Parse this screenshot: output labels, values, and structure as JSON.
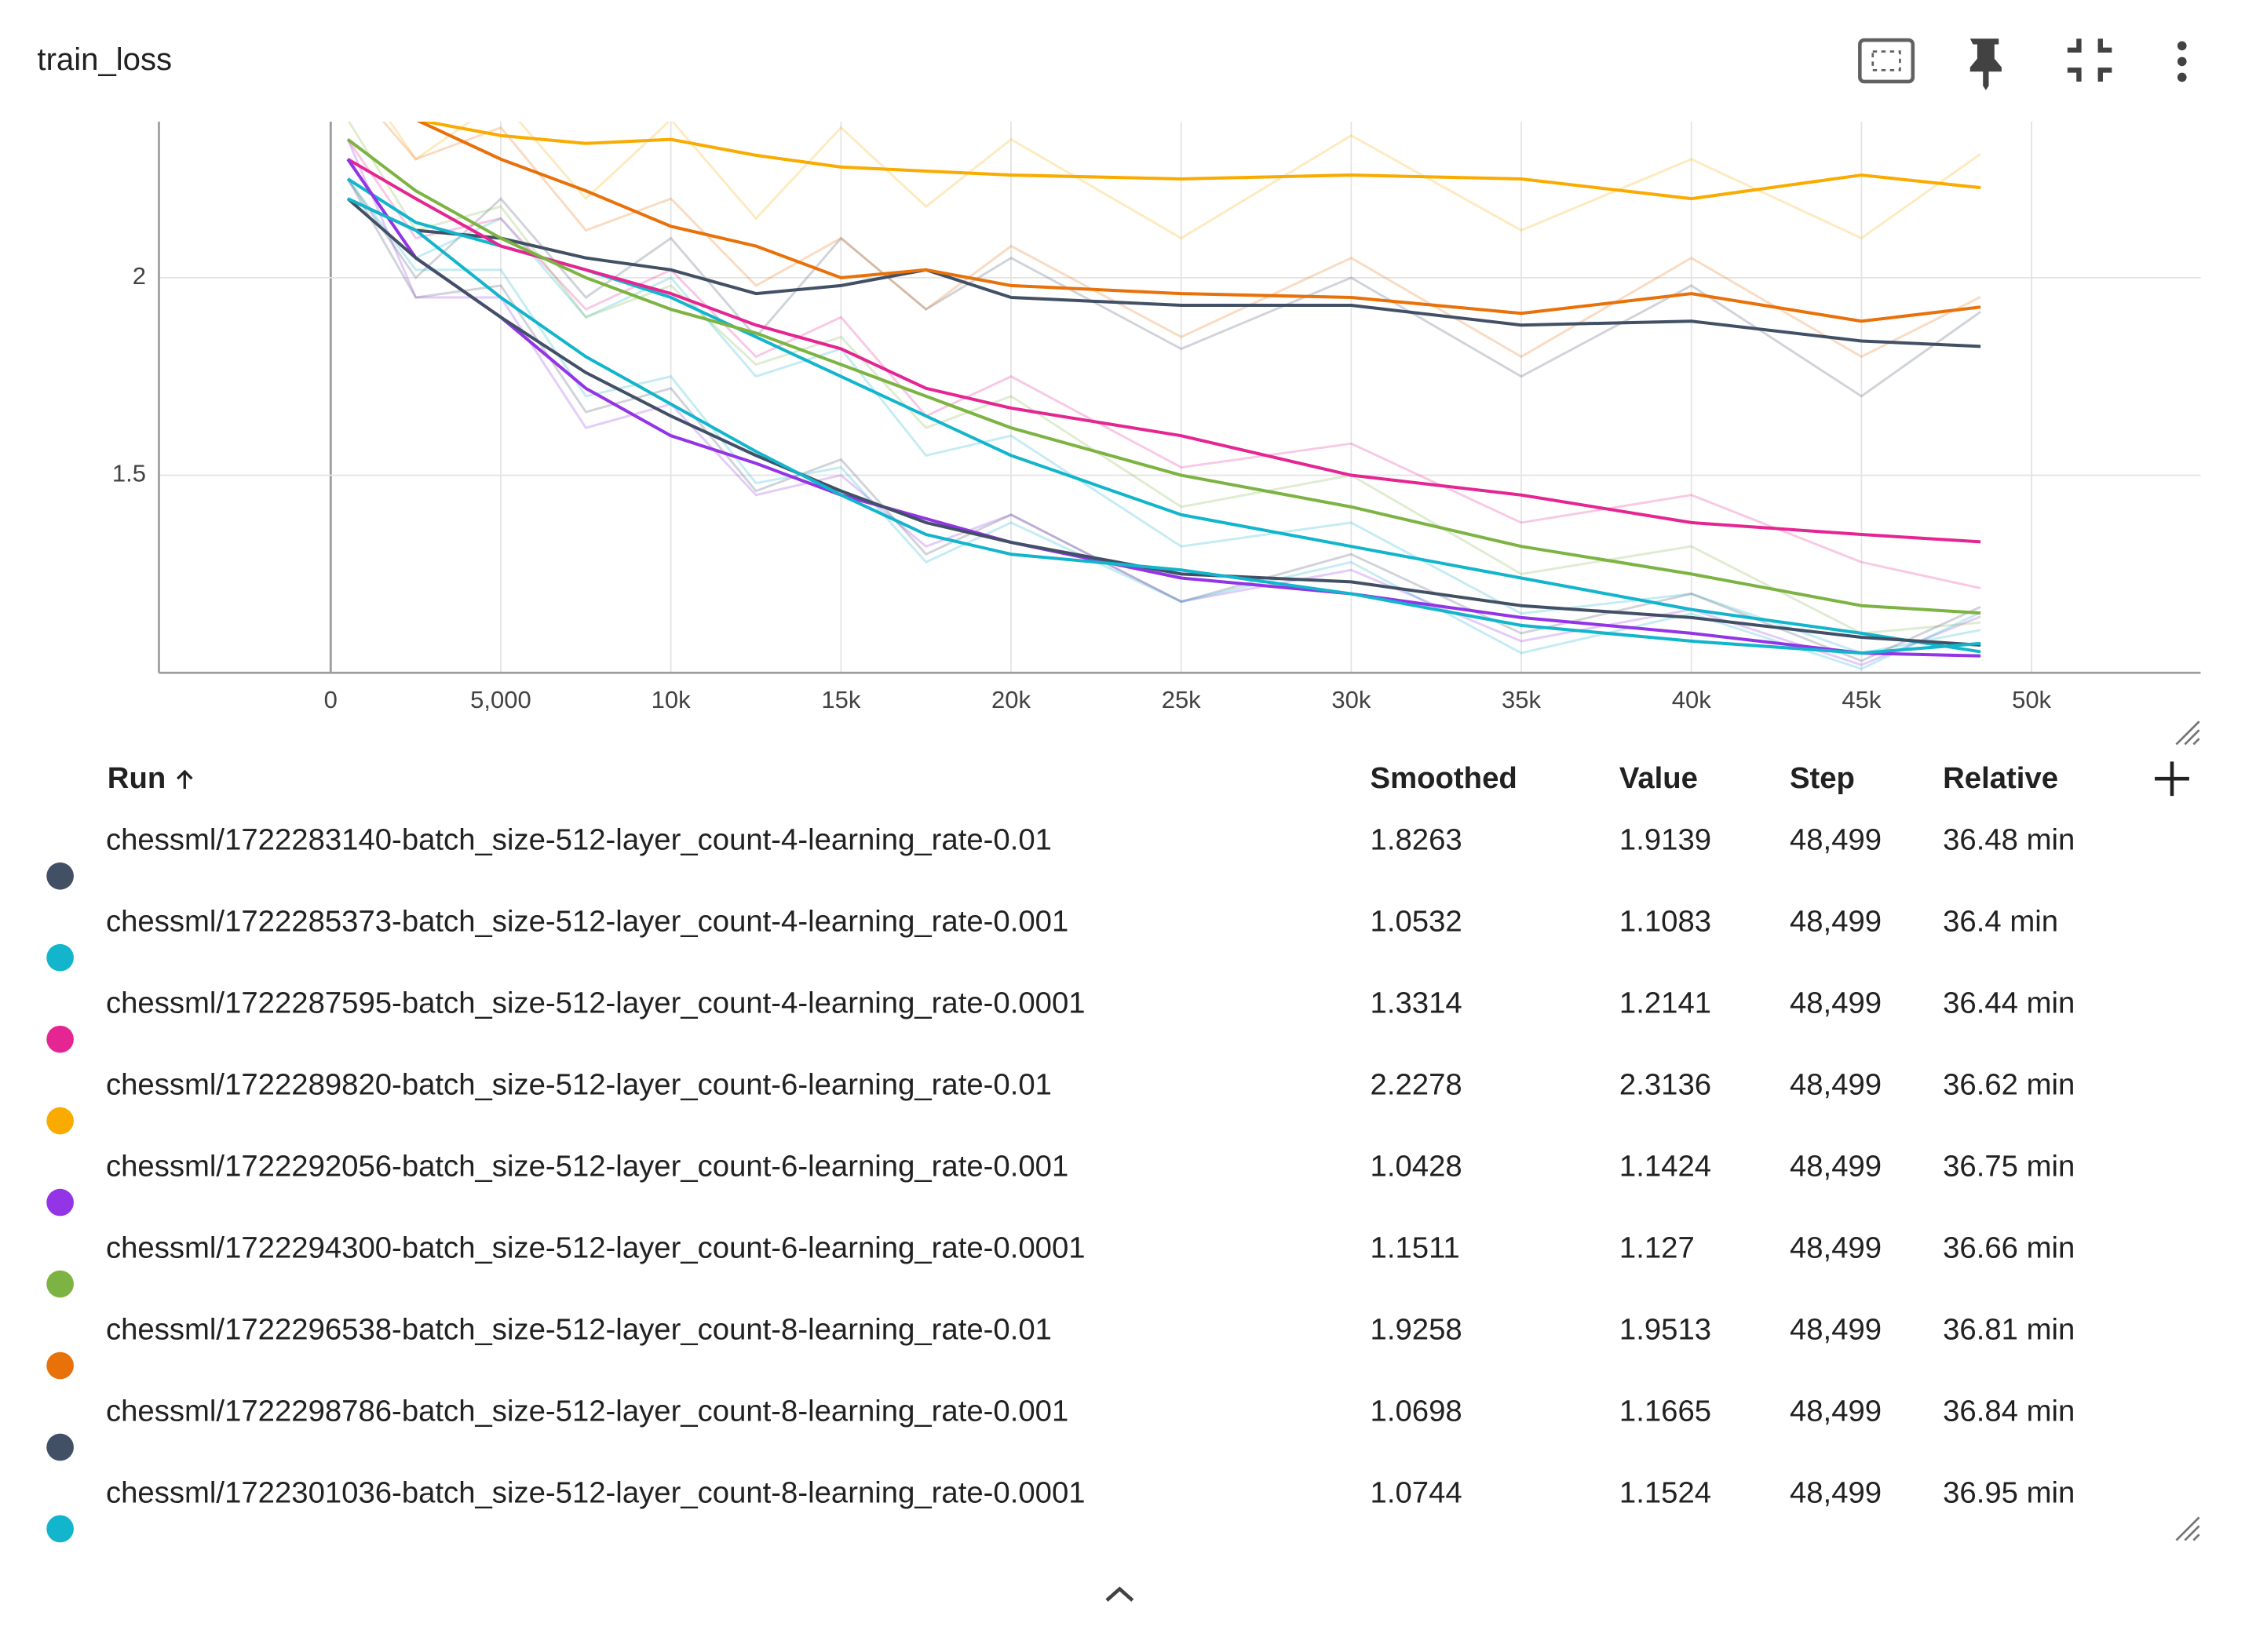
{
  "title": "train_loss",
  "chart_data": {
    "type": "line",
    "grid": true,
    "smoothed_width": 2.2,
    "raw_opacity": 0.25,
    "xlim": [
      -5050,
      54970
    ],
    "ylim": [
      1.0,
      2.395
    ],
    "xticks": [
      0,
      {
        "value": 5000,
        "label": "5,000"
      },
      {
        "value": 10000,
        "label": "10k"
      },
      {
        "value": 15000,
        "label": "15k"
      },
      {
        "value": 20000,
        "label": "20k"
      },
      {
        "value": 25000,
        "label": "25k"
      },
      {
        "value": 30000,
        "label": "30k"
      },
      {
        "value": 35000,
        "label": "35k"
      },
      {
        "value": 40000,
        "label": "40k"
      },
      {
        "value": 45000,
        "label": "45k"
      },
      {
        "value": 50000,
        "label": "50k"
      }
    ],
    "yticks": [
      1.5,
      2
    ],
    "x": [
      500,
      2500,
      5000,
      7500,
      10000,
      12500,
      15000,
      17500,
      20000,
      25000,
      30000,
      35000,
      40000,
      45000,
      48499
    ],
    "series": [
      {
        "name": "chessml/1722283140-batch_size-512-layer_count-4-learning_rate-0.01",
        "color": "#425066",
        "values": [
          2.2,
          2.12,
          2.1,
          2.05,
          2.02,
          1.96,
          1.98,
          2.02,
          1.95,
          1.93,
          1.93,
          1.88,
          1.89,
          1.84,
          1.8263
        ],
        "raw_values": [
          2.25,
          2.0,
          2.2,
          1.95,
          2.1,
          1.85,
          2.1,
          1.92,
          2.05,
          1.82,
          2.0,
          1.75,
          1.98,
          1.7,
          1.9139
        ]
      },
      {
        "name": "chessml/1722285373-batch_size-512-layer_count-4-learning_rate-0.001",
        "color": "#12b5cb",
        "values": [
          2.25,
          2.14,
          2.08,
          2.02,
          1.95,
          1.85,
          1.75,
          1.65,
          1.55,
          1.4,
          1.32,
          1.24,
          1.16,
          1.1,
          1.0532
        ],
        "raw_values": [
          2.3,
          2.05,
          2.15,
          1.9,
          2.0,
          1.75,
          1.82,
          1.55,
          1.6,
          1.32,
          1.38,
          1.15,
          1.2,
          1.05,
          1.1083
        ]
      },
      {
        "name": "chessml/1722287595-batch_size-512-layer_count-4-learning_rate-0.0001",
        "color": "#e52592",
        "values": [
          2.3,
          2.2,
          2.08,
          2.02,
          1.96,
          1.88,
          1.82,
          1.72,
          1.67,
          1.6,
          1.5,
          1.45,
          1.38,
          1.35,
          1.3314
        ],
        "raw_values": [
          2.35,
          2.1,
          2.15,
          1.92,
          2.02,
          1.8,
          1.9,
          1.65,
          1.75,
          1.52,
          1.58,
          1.38,
          1.45,
          1.28,
          1.2141
        ]
      },
      {
        "name": "chessml/1722289820-batch_size-512-layer_count-6-learning_rate-0.01",
        "color": "#f9ab00",
        "values": [
          2.5,
          2.4,
          2.36,
          2.34,
          2.35,
          2.31,
          2.28,
          2.27,
          2.26,
          2.25,
          2.26,
          2.25,
          2.2,
          2.26,
          2.2278
        ],
        "raw_values": [
          2.55,
          2.3,
          2.45,
          2.2,
          2.4,
          2.15,
          2.38,
          2.18,
          2.35,
          2.1,
          2.36,
          2.12,
          2.3,
          2.1,
          2.3136
        ]
      },
      {
        "name": "chessml/1722292056-batch_size-512-layer_count-6-learning_rate-0.001",
        "color": "#9334e6",
        "values": [
          2.3,
          2.05,
          1.9,
          1.72,
          1.6,
          1.53,
          1.45,
          1.39,
          1.33,
          1.24,
          1.2,
          1.14,
          1.1,
          1.05,
          1.0428
        ],
        "raw_values": [
          2.35,
          1.95,
          1.95,
          1.62,
          1.68,
          1.45,
          1.5,
          1.32,
          1.4,
          1.18,
          1.26,
          1.08,
          1.16,
          1.02,
          1.1424
        ]
      },
      {
        "name": "chessml/1722294300-batch_size-512-layer_count-6-learning_rate-0.0001",
        "color": "#7cb342",
        "values": [
          2.35,
          2.22,
          2.1,
          2.0,
          1.92,
          1.86,
          1.78,
          1.7,
          1.62,
          1.5,
          1.42,
          1.32,
          1.25,
          1.17,
          1.1511
        ],
        "raw_values": [
          2.4,
          2.12,
          2.18,
          1.9,
          1.98,
          1.78,
          1.85,
          1.62,
          1.7,
          1.42,
          1.5,
          1.25,
          1.32,
          1.1,
          1.127
        ]
      },
      {
        "name": "chessml/1722296538-batch_size-512-layer_count-8-learning_rate-0.01",
        "color": "#e8710a",
        "values": [
          2.45,
          2.4,
          2.3,
          2.22,
          2.13,
          2.08,
          2.0,
          2.02,
          1.98,
          1.96,
          1.95,
          1.91,
          1.96,
          1.89,
          1.9258
        ],
        "raw_values": [
          2.5,
          2.3,
          2.38,
          2.12,
          2.2,
          1.98,
          2.1,
          1.92,
          2.08,
          1.85,
          2.05,
          1.8,
          2.05,
          1.8,
          1.9513
        ]
      },
      {
        "name": "chessml/1722298786-batch_size-512-layer_count-8-learning_rate-0.001",
        "color": "#425066",
        "values": [
          2.2,
          2.05,
          1.9,
          1.76,
          1.65,
          1.55,
          1.46,
          1.38,
          1.33,
          1.25,
          1.23,
          1.17,
          1.14,
          1.09,
          1.0698
        ],
        "raw_values": [
          2.25,
          1.95,
          1.98,
          1.66,
          1.72,
          1.46,
          1.54,
          1.3,
          1.4,
          1.18,
          1.3,
          1.1,
          1.2,
          1.03,
          1.1665
        ]
      },
      {
        "name": "chessml/1722301036-batch_size-512-layer_count-8-learning_rate-0.0001",
        "color": "#12b5cb",
        "values": [
          2.2,
          2.12,
          1.95,
          1.8,
          1.68,
          1.56,
          1.45,
          1.35,
          1.3,
          1.26,
          1.2,
          1.12,
          1.08,
          1.05,
          1.0744
        ],
        "raw_values": [
          2.25,
          2.02,
          2.02,
          1.7,
          1.75,
          1.48,
          1.52,
          1.28,
          1.38,
          1.18,
          1.28,
          1.05,
          1.15,
          1.01,
          1.1524
        ]
      }
    ]
  },
  "table": {
    "columns": [
      "Run",
      "Smoothed",
      "Value",
      "Step",
      "Relative"
    ],
    "rows": [
      {
        "step": "48,499",
        "relative": "36.48 min"
      },
      {
        "step": "48,499",
        "relative": "36.4 min"
      },
      {
        "step": "48,499",
        "relative": "36.44 min"
      },
      {
        "step": "48,499",
        "relative": "36.62 min"
      },
      {
        "step": "48,499",
        "relative": "36.75 min"
      },
      {
        "step": "48,499",
        "relative": "36.66 min"
      },
      {
        "step": "48,499",
        "relative": "36.81 min"
      },
      {
        "step": "48,499",
        "relative": "36.84 min"
      },
      {
        "step": "48,499",
        "relative": "36.95 min"
      }
    ]
  }
}
